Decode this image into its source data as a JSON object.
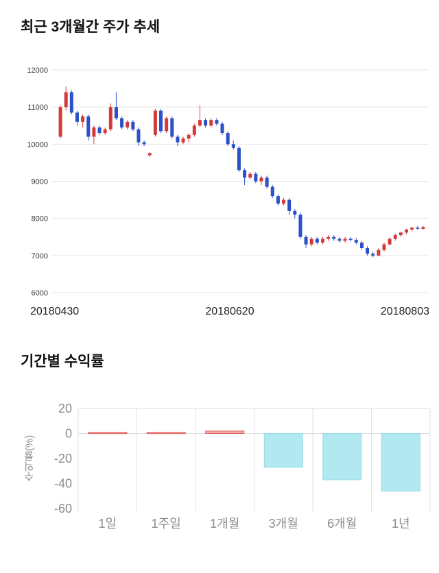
{
  "chart_data": [
    {
      "type": "candlestick",
      "title": "최근 3개월간 주가 추세",
      "x_labels": [
        "20180430",
        "20180620",
        "20180803"
      ],
      "y_ticks": [
        12000,
        11000,
        10000,
        9000,
        8000,
        7000,
        6000
      ],
      "ylim": [
        6000,
        12000
      ],
      "grid": true,
      "legend": "none",
      "up_color": "#d43a3a",
      "down_color": "#2b50c8",
      "grid_color": "#e5e5e5",
      "candles": [
        [
          10200,
          11050,
          10150,
          11000
        ],
        [
          11000,
          11550,
          10900,
          11400
        ],
        [
          11400,
          11450,
          10800,
          10850
        ],
        [
          10850,
          10900,
          10500,
          10600
        ],
        [
          10600,
          10800,
          10450,
          10750
        ],
        [
          10750,
          10800,
          10100,
          10200
        ],
        [
          10200,
          10500,
          10000,
          10450
        ],
        [
          10450,
          10500,
          10250,
          10300
        ],
        [
          10300,
          10450,
          10250,
          10400
        ],
        [
          10400,
          11100,
          10350,
          11000
        ],
        [
          11000,
          11400,
          10650,
          10700
        ],
        [
          10700,
          10750,
          10400,
          10450
        ],
        [
          10450,
          10650,
          10400,
          10600
        ],
        [
          10600,
          10650,
          10350,
          10400
        ],
        [
          10400,
          10450,
          9950,
          10050
        ],
        [
          10050,
          10100,
          9950,
          10000
        ],
        [
          9700,
          9780,
          9650,
          9760
        ],
        [
          10250,
          10950,
          10200,
          10900
        ],
        [
          10900,
          10950,
          10300,
          10350
        ],
        [
          10350,
          10750,
          10300,
          10700
        ],
        [
          10700,
          10750,
          10150,
          10200
        ],
        [
          10200,
          10250,
          9950,
          10050
        ],
        [
          10050,
          10200,
          10000,
          10150
        ],
        [
          10150,
          10300,
          10050,
          10250
        ],
        [
          10250,
          10550,
          10200,
          10500
        ],
        [
          10500,
          11050,
          10450,
          10650
        ],
        [
          10650,
          10700,
          10450,
          10500
        ],
        [
          10500,
          10700,
          10450,
          10650
        ],
        [
          10650,
          10700,
          10500,
          10550
        ],
        [
          10550,
          10600,
          10250,
          10300
        ],
        [
          10300,
          10350,
          9950,
          10000
        ],
        [
          10000,
          10100,
          9850,
          9900
        ],
        [
          9900,
          9950,
          9250,
          9300
        ],
        [
          9300,
          9350,
          8900,
          9100
        ],
        [
          9100,
          9250,
          9050,
          9200
        ],
        [
          9200,
          9250,
          8950,
          9000
        ],
        [
          9000,
          9150,
          8900,
          9100
        ],
        [
          9100,
          9150,
          8800,
          8850
        ],
        [
          8850,
          8900,
          8550,
          8600
        ],
        [
          8600,
          8650,
          8350,
          8400
        ],
        [
          8400,
          8550,
          8350,
          8500
        ],
        [
          8500,
          8550,
          8100,
          8200
        ],
        [
          8200,
          8250,
          8000,
          8100
        ],
        [
          8100,
          8150,
          7450,
          7500
        ],
        [
          7500,
          7550,
          7200,
          7300
        ],
        [
          7300,
          7500,
          7250,
          7450
        ],
        [
          7450,
          7500,
          7300,
          7350
        ],
        [
          7350,
          7500,
          7300,
          7450
        ],
        [
          7450,
          7550,
          7400,
          7500
        ],
        [
          7500,
          7550,
          7400,
          7450
        ],
        [
          7450,
          7500,
          7350,
          7400
        ],
        [
          7400,
          7500,
          7350,
          7450
        ],
        [
          7450,
          7500,
          7380,
          7420
        ],
        [
          7420,
          7480,
          7300,
          7350
        ],
        [
          7350,
          7400,
          7150,
          7200
        ],
        [
          7200,
          7250,
          7000,
          7050
        ],
        [
          7050,
          7100,
          6950,
          7000
        ],
        [
          7000,
          7200,
          6980,
          7150
        ],
        [
          7150,
          7350,
          7100,
          7300
        ],
        [
          7300,
          7500,
          7280,
          7450
        ],
        [
          7450,
          7600,
          7400,
          7550
        ],
        [
          7550,
          7650,
          7500,
          7620
        ],
        [
          7620,
          7720,
          7580,
          7700
        ],
        [
          7700,
          7780,
          7650,
          7750
        ],
        [
          7750,
          7800,
          7700,
          7720
        ],
        [
          7720,
          7800,
          7700,
          7770
        ]
      ]
    },
    {
      "type": "bar",
      "title": "기간별 수익률",
      "ylabel": "수익률(%)",
      "categories": [
        "1일",
        "1주일",
        "1개월",
        "3개월",
        "6개월",
        "1년"
      ],
      "values": [
        1,
        1,
        2,
        -27,
        -37,
        -46
      ],
      "y_ticks": [
        20,
        0,
        -20,
        -40,
        -60
      ],
      "ylim": [
        -60,
        20
      ],
      "grid": true,
      "legend": "none",
      "positive_fill": "#f5a8a6",
      "positive_stroke": "#e06360",
      "negative_fill": "#b2e8f0",
      "negative_stroke": "#93d9e6",
      "grid_color": "#dcdcdc",
      "axis_text_color": "#8c8c8c"
    }
  ]
}
